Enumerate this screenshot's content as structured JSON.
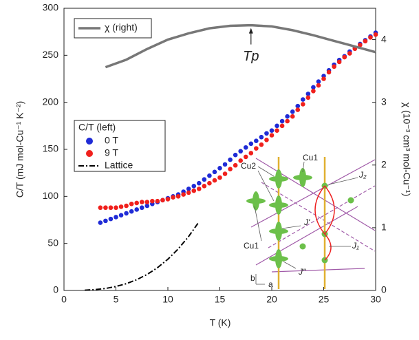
{
  "chart_data": {
    "type": "scatter",
    "xlabel": "T (K)",
    "ylabel": "C/T (mJ mol-Cu⁻¹ K⁻²)",
    "y2label": "χ (10⁻³ cm³ mol-Cu⁻¹)",
    "xlim": [
      0,
      30
    ],
    "xticks": [
      0,
      5,
      10,
      15,
      20,
      25,
      30
    ],
    "ylim": [
      0,
      300
    ],
    "yticks": [
      0,
      50,
      100,
      150,
      200,
      250,
      300
    ],
    "y2lim": [
      0,
      4.5
    ],
    "y2ticks": [
      0,
      1,
      2,
      3,
      4
    ],
    "legend_title": "C/T (left)",
    "annotation": {
      "text": "Tp",
      "x": 18,
      "y": 4.23
    },
    "series": [
      {
        "name": "0 T",
        "type": "scatter",
        "color": "#1f2bd6",
        "axis": "y",
        "x": [
          3.5,
          4,
          4.5,
          5,
          5.5,
          6,
          6.5,
          7,
          7.5,
          8,
          8.5,
          9,
          9.5,
          10,
          10.5,
          11,
          11.5,
          12,
          12.5,
          13,
          13.5,
          14,
          14.5,
          15,
          15.5,
          16,
          16.5,
          17,
          17.5,
          18,
          18.5,
          19,
          19.5,
          20,
          20.5,
          21,
          21.5,
          22,
          22.5,
          23,
          23.5,
          24,
          24.5,
          25,
          25.5,
          26,
          26.5,
          27,
          27.5,
          28,
          28.5,
          29,
          29.5,
          30
        ],
        "values": [
          72,
          74,
          76,
          78,
          80,
          82,
          84,
          86,
          88,
          90,
          92,
          94,
          96,
          98,
          100,
          102,
          105,
          108,
          111,
          114,
          118,
          122,
          126,
          130,
          134,
          139,
          144,
          148,
          152,
          156,
          159,
          163,
          167,
          170,
          175,
          180,
          185,
          190,
          196,
          203,
          209,
          216,
          222,
          228,
          234,
          240,
          245,
          249,
          254,
          258,
          262,
          266,
          270,
          274
        ]
      },
      {
        "name": "9 T",
        "type": "scatter",
        "color": "#f0201c",
        "axis": "y",
        "x": [
          3.5,
          4,
          4.5,
          5,
          5.5,
          6,
          6.5,
          7,
          7.5,
          8,
          8.5,
          9,
          9.5,
          10,
          10.5,
          11,
          11.5,
          12,
          12.5,
          13,
          13.5,
          14,
          14.5,
          15,
          15.5,
          16,
          16.5,
          17,
          17.5,
          18,
          18.5,
          19,
          19.5,
          20,
          20.5,
          21,
          21.5,
          22,
          22.5,
          23,
          23.5,
          24,
          24.5,
          25,
          25.5,
          26,
          26.5,
          27,
          27.5,
          28,
          28.5,
          29,
          29.5,
          30
        ],
        "values": [
          88,
          88,
          88,
          88,
          89,
          90,
          92,
          93,
          94,
          94,
          95,
          95,
          96,
          97,
          99,
          100,
          102,
          104,
          106,
          108,
          111,
          114,
          117,
          120,
          124,
          129,
          133,
          138,
          142,
          146,
          151,
          155,
          160,
          165,
          170,
          175,
          180,
          185,
          192,
          198,
          205,
          212,
          218,
          225,
          232,
          238,
          243,
          248,
          252,
          257,
          261,
          265,
          269,
          272
        ]
      },
      {
        "name": "Lattice",
        "type": "line",
        "color": "#000000",
        "axis": "y",
        "linestyle": "dashdot",
        "x": [
          2,
          3,
          4,
          5,
          6,
          7,
          8,
          9,
          10,
          11,
          12,
          13
        ],
        "values": [
          0.3,
          0.9,
          2.1,
          4.2,
          7.2,
          11.4,
          17,
          24.2,
          33.2,
          44.2,
          57.4,
          73
        ]
      },
      {
        "name": "χ (right)",
        "type": "line",
        "color": "#777777",
        "axis": "y2",
        "linestyle": "solid",
        "x": [
          4,
          6,
          8,
          10,
          12,
          14,
          16,
          18,
          20,
          22,
          24,
          26,
          28,
          30
        ],
        "values": [
          3.56,
          3.68,
          3.85,
          4.0,
          4.1,
          4.18,
          4.22,
          4.23,
          4.21,
          4.15,
          4.07,
          3.98,
          3.89,
          3.8
        ]
      }
    ]
  },
  "inset": {
    "labels": [
      "Cu1",
      "Cu2",
      "Cu1",
      "J'",
      "J''",
      "J₂",
      "J₁",
      "b",
      "a"
    ]
  }
}
